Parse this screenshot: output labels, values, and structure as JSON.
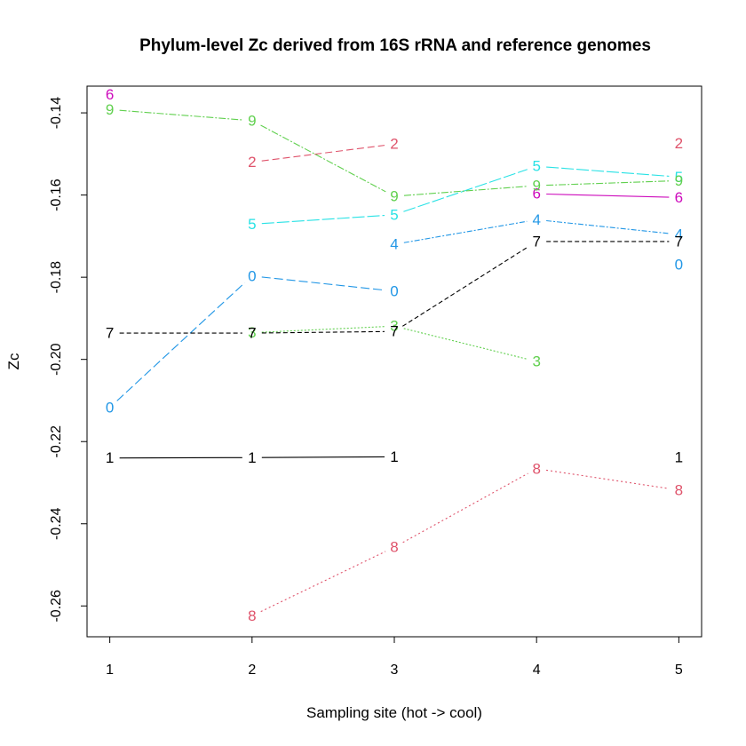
{
  "chart_data": {
    "type": "line",
    "title": "Phylum-level Zc derived from 16S rRNA and reference genomes",
    "xlabel": "Sampling site (hot -> cool)",
    "ylabel": "Zc",
    "x": [
      1,
      2,
      3,
      4,
      5
    ],
    "xticks": [
      "1",
      "2",
      "3",
      "4",
      "5"
    ],
    "yticks": [
      -0.26,
      -0.24,
      -0.22,
      -0.2,
      -0.18,
      -0.16,
      -0.14
    ],
    "ytick_labels": [
      "-0.26",
      "-0.24",
      "-0.22",
      "-0.20",
      "-0.18",
      "-0.16",
      "-0.14"
    ],
    "xlim": [
      0.84,
      5.16
    ],
    "ylim": [
      -0.2675,
      -0.1335
    ],
    "series": [
      {
        "label": "0",
        "color": "#2297E6",
        "dash": "10,4",
        "values": [
          -0.2117,
          -0.1797,
          -0.1834,
          null,
          -0.1769
        ],
        "connected": [
          true,
          true,
          false,
          false
        ]
      },
      {
        "label": "1",
        "color": "#000000",
        "dash": "",
        "values": [
          -0.224,
          -0.2239,
          -0.2237,
          null,
          -0.2238
        ],
        "connected": [
          true,
          true,
          false,
          false
        ]
      },
      {
        "label": "2",
        "color": "#DF536B",
        "dash": "8,4",
        "values": [
          null,
          -0.152,
          -0.1476,
          null,
          -0.1474
        ],
        "connected": [
          false,
          true,
          false,
          false
        ]
      },
      {
        "label": "3",
        "color": "#61D04F",
        "dash": "2,2",
        "values": [
          null,
          -0.1935,
          -0.1919,
          -0.2005,
          null
        ],
        "connected": [
          false,
          true,
          true,
          false
        ]
      },
      {
        "label": "4",
        "color": "#2297E6",
        "dash": "6,2,2,2",
        "values": [
          null,
          null,
          -0.172,
          -0.166,
          -0.1696
        ],
        "connected": [
          false,
          false,
          true,
          true
        ]
      },
      {
        "label": "5",
        "color": "#28E2E5",
        "dash": "14,3",
        "values": [
          null,
          -0.1671,
          -0.1648,
          -0.153,
          -0.1556
        ],
        "connected": [
          false,
          true,
          true,
          true
        ]
      },
      {
        "label": "6",
        "color": "#CD0BBC",
        "dash": "",
        "values": [
          -0.1355,
          null,
          null,
          -0.1597,
          -0.1606
        ],
        "connected": [
          false,
          false,
          false,
          true
        ]
      },
      {
        "label": "7",
        "color": "#000000",
        "dash": "5,3",
        "values": [
          -0.1936,
          -0.1936,
          -0.1932,
          -0.1713,
          -0.1713
        ],
        "connected": [
          true,
          true,
          true,
          true
        ]
      },
      {
        "label": "9",
        "color": "#61D04F",
        "dash": "8,2,2,2",
        "values": [
          -0.1392,
          -0.1419,
          -0.1603,
          -0.1577,
          -0.1565
        ],
        "connected": [
          true,
          true,
          true,
          true
        ]
      },
      {
        "label": "8",
        "color": "#DF536B",
        "dash": "2,3",
        "values": [
          null,
          -0.2624,
          -0.2457,
          -0.2266,
          -0.2318
        ],
        "connected": [
          false,
          true,
          true,
          true
        ]
      }
    ]
  }
}
